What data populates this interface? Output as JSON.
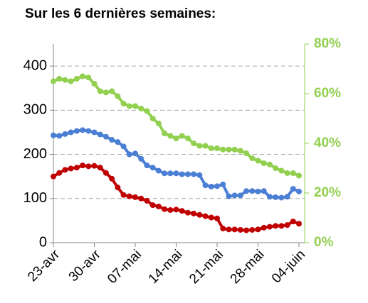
{
  "chart_data": {
    "type": "line",
    "title": "Sur les 6 dernières semaines:",
    "categories": [
      "23-avr",
      null,
      null,
      null,
      null,
      null,
      null,
      "30-avr",
      null,
      null,
      null,
      null,
      null,
      null,
      "07-mai",
      null,
      null,
      null,
      null,
      null,
      null,
      "14-mai",
      null,
      null,
      null,
      null,
      null,
      null,
      "21-mai",
      null,
      null,
      null,
      null,
      null,
      null,
      "28-mai",
      null,
      null,
      null,
      null,
      null,
      null,
      "04-juin"
    ],
    "ylim": [
      0,
      450
    ],
    "yticks": [
      0,
      100,
      200,
      300,
      400
    ],
    "y2lim": [
      0,
      80
    ],
    "y2ticks": [
      {
        "value": 0,
        "label": "0%"
      },
      {
        "value": 20,
        "label": "20%"
      },
      {
        "value": 40,
        "label": "40%"
      },
      {
        "value": 60,
        "label": "60%"
      },
      {
        "value": 80,
        "label": "80%"
      }
    ],
    "grid": true,
    "series": [
      {
        "color": "#4a7fd4",
        "values": [
          243,
          242,
          246,
          250,
          253,
          255,
          253,
          250,
          245,
          240,
          233,
          228,
          218,
          200,
          202,
          190,
          175,
          170,
          163,
          157,
          157,
          157,
          155,
          155,
          155,
          153,
          130,
          127,
          128,
          132,
          105,
          107,
          107,
          117,
          117,
          116,
          117,
          104,
          103,
          102,
          104,
          122,
          116
        ]
      },
      {
        "color": "#c00000",
        "values": [
          150,
          158,
          165,
          168,
          170,
          175,
          173,
          174,
          170,
          158,
          145,
          125,
          108,
          105,
          103,
          100,
          95,
          85,
          82,
          76,
          74,
          75,
          72,
          68,
          66,
          63,
          60,
          57,
          55,
          32,
          30,
          30,
          29,
          28,
          29,
          30,
          34,
          36,
          38,
          38,
          40,
          48,
          43
        ]
      },
      {
        "color": "#92d050",
        "axis": "y2",
        "values": [
          65,
          66,
          65.5,
          65,
          66,
          67,
          66.5,
          64,
          61,
          60.5,
          61,
          59,
          56,
          55,
          55,
          54,
          53,
          50,
          48,
          44,
          43,
          42,
          43,
          42,
          40,
          39,
          39,
          38,
          38,
          37.5,
          37.5,
          37.5,
          37,
          36,
          34,
          33,
          32,
          31.5,
          30,
          29,
          28,
          28,
          27
        ]
      }
    ]
  }
}
